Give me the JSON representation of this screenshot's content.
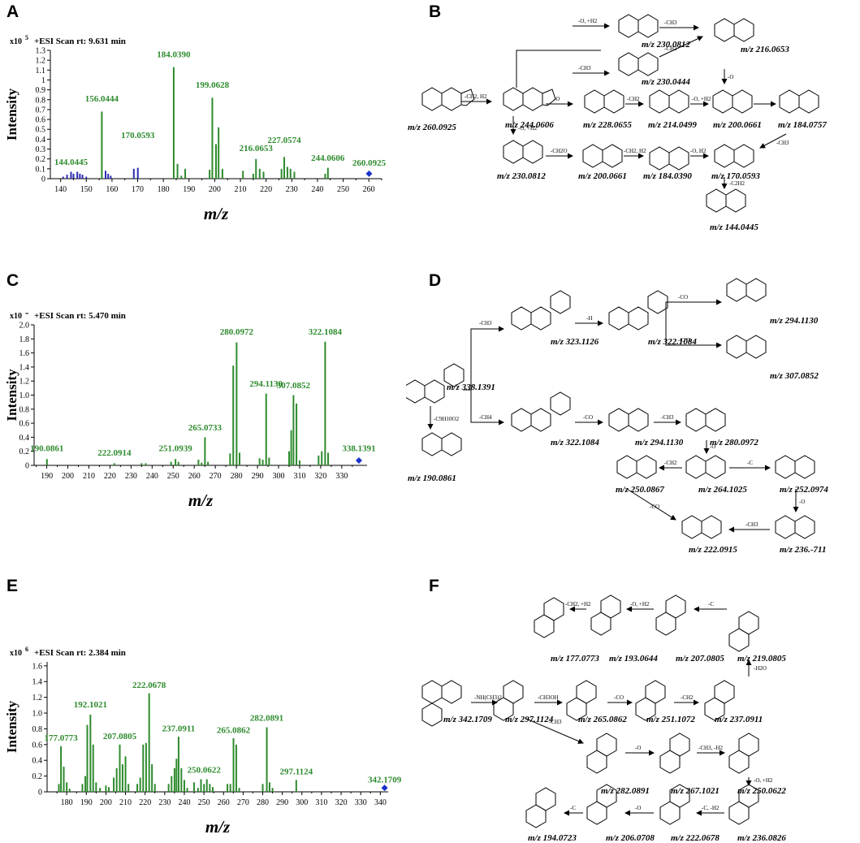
{
  "panel_labels": [
    "A",
    "B",
    "C",
    "D",
    "E",
    "F"
  ],
  "colors": {
    "peak": "#2e8b2e",
    "label": "#2e8b2e",
    "minor": "#2b2bb0",
    "precursor": "#1a33cc",
    "axis": "#000000"
  },
  "chart_data": [
    {
      "type": "bar",
      "panel": "A",
      "scale_label": "x10",
      "scale_exp": "5",
      "title": "+ESI Scan rt: 9.631 min",
      "xlabel": "m/z",
      "ylabel": "Intensity",
      "xlim": [
        136,
        265
      ],
      "ylim": [
        0,
        1.3
      ],
      "xticks": [
        140,
        150,
        160,
        170,
        180,
        190,
        200,
        210,
        220,
        230,
        240,
        250,
        260
      ],
      "yticks": [
        0,
        0.1,
        0.2,
        0.3,
        0.4,
        0.5,
        0.6,
        0.7,
        0.8,
        0.9,
        1.0,
        1.1,
        1.2,
        1.3
      ],
      "ytick_labels": [
        "0",
        "0.1",
        "0.2",
        "0.3",
        "0.4",
        "0.5",
        "0.6",
        "0.7",
        "0.8",
        "0.9",
        "1",
        "1.1",
        "1.2",
        "1.3"
      ],
      "peaks": [
        [
          141,
          0.02
        ],
        [
          142.5,
          0.04
        ],
        [
          144.0445,
          0.07
        ],
        [
          145,
          0.05
        ],
        [
          146.5,
          0.07
        ],
        [
          147.5,
          0.05
        ],
        [
          148.5,
          0.04
        ],
        [
          150,
          0.02
        ],
        [
          156.0444,
          0.68
        ],
        [
          157.5,
          0.08
        ],
        [
          158.5,
          0.05
        ],
        [
          159.5,
          0.03
        ],
        [
          168.5,
          0.1
        ],
        [
          170.0593,
          0.11
        ],
        [
          184.039,
          1.13
        ],
        [
          185.5,
          0.15
        ],
        [
          187,
          0.03
        ],
        [
          188.5,
          0.1
        ],
        [
          198,
          0.09
        ],
        [
          199.0628,
          0.82
        ],
        [
          200.5,
          0.35
        ],
        [
          201.5,
          0.52
        ],
        [
          203,
          0.1
        ],
        [
          211,
          0.08
        ],
        [
          215,
          0.05
        ],
        [
          216.0653,
          0.2
        ],
        [
          217.5,
          0.1
        ],
        [
          219,
          0.07
        ],
        [
          226,
          0.1
        ],
        [
          227.0574,
          0.22
        ],
        [
          228.3,
          0.12
        ],
        [
          229.5,
          0.1
        ],
        [
          231,
          0.07
        ],
        [
          243,
          0.05
        ],
        [
          244.0606,
          0.11
        ]
      ],
      "minor_peaks": [
        [
          141,
          0.02
        ],
        [
          142.5,
          0.04
        ],
        [
          144.0445,
          0.07
        ],
        [
          145,
          0.05
        ],
        [
          146.5,
          0.07
        ],
        [
          147.5,
          0.05
        ],
        [
          148.5,
          0.04
        ],
        [
          150,
          0.02
        ],
        [
          157.5,
          0.08
        ],
        [
          158.5,
          0.05
        ],
        [
          159.5,
          0.03
        ],
        [
          168.5,
          0.1
        ],
        [
          170.0593,
          0.11
        ]
      ],
      "precursor": [
        260.0925,
        0.05
      ],
      "labels": [
        {
          "text": "144.0445",
          "x": 144.0445,
          "y": 0.14
        },
        {
          "text": "156.0444",
          "x": 156.0444,
          "y": 0.78
        },
        {
          "text": "170.0593",
          "x": 170.0593,
          "y": 0.41
        },
        {
          "text": "184.0390",
          "x": 184.039,
          "y": 1.23
        },
        {
          "text": "199.0628",
          "x": 199.0628,
          "y": 0.92
        },
        {
          "text": "216.0653",
          "x": 216.0653,
          "y": 0.28
        },
        {
          "text": "227.0574",
          "x": 227.0574,
          "y": 0.36
        },
        {
          "text": "244.0606",
          "x": 244.0606,
          "y": 0.18
        },
        {
          "text": "260.0925",
          "x": 260.0925,
          "y": 0.13
        }
      ]
    },
    {
      "type": "bar",
      "panel": "C",
      "scale_label": "x10",
      "scale_exp": "6",
      "title": "+ESI Scan rt: 5.470 min",
      "xlabel": "m/z",
      "ylabel": "Intensity",
      "xlim": [
        184,
        342
      ],
      "ylim": [
        0,
        2.0
      ],
      "xticks": [
        190,
        200,
        210,
        220,
        230,
        240,
        250,
        260,
        270,
        280,
        290,
        300,
        310,
        320,
        330
      ],
      "yticks": [
        0,
        0.2,
        0.4,
        0.6,
        0.8,
        1.0,
        1.2,
        1.4,
        1.6,
        1.8,
        2.0
      ],
      "ytick_labels": [
        "0",
        "0.2",
        "0.4",
        "0.6",
        "0.8",
        "1.0",
        "1.2",
        "1.4",
        "1.6",
        "1.8",
        "2.0"
      ],
      "peaks": [
        [
          190.0861,
          0.09
        ],
        [
          222.0914,
          0.03
        ],
        [
          235,
          0.03
        ],
        [
          237,
          0.03
        ],
        [
          249,
          0.05
        ],
        [
          251.0939,
          0.09
        ],
        [
          252.5,
          0.05
        ],
        [
          262,
          0.08
        ],
        [
          263.5,
          0.04
        ],
        [
          265.0733,
          0.4
        ],
        [
          266.5,
          0.05
        ],
        [
          277,
          0.17
        ],
        [
          278.5,
          1.42
        ],
        [
          280.0972,
          1.75
        ],
        [
          281.5,
          0.18
        ],
        [
          291,
          0.1
        ],
        [
          292.5,
          0.08
        ],
        [
          294.113,
          1.02
        ],
        [
          295.5,
          0.11
        ],
        [
          305,
          0.2
        ],
        [
          306,
          0.5
        ],
        [
          307.0852,
          1.0
        ],
        [
          308.5,
          0.88
        ],
        [
          310,
          0.07
        ],
        [
          319,
          0.14
        ],
        [
          320.5,
          0.2
        ],
        [
          322.1084,
          1.76
        ],
        [
          323.5,
          0.18
        ]
      ],
      "minor_peaks": [],
      "precursor": [
        338.1391,
        0.07
      ],
      "labels": [
        {
          "text": "190.0861",
          "x": 190.0861,
          "y": 0.2
        },
        {
          "text": "222.0914",
          "x": 222.0914,
          "y": 0.14
        },
        {
          "text": "251.0939",
          "x": 251.0939,
          "y": 0.2
        },
        {
          "text": "265.0733",
          "x": 265.0733,
          "y": 0.5
        },
        {
          "text": "280.0972",
          "x": 280.0972,
          "y": 1.86
        },
        {
          "text": "294.1130",
          "x": 294.113,
          "y": 1.12
        },
        {
          "text": "307.0852",
          "x": 307.0852,
          "y": 1.1
        },
        {
          "text": "322.1084",
          "x": 322.1084,
          "y": 1.86
        },
        {
          "text": "338.1391",
          "x": 338.1391,
          "y": 0.2
        }
      ]
    },
    {
      "type": "bar",
      "panel": "E",
      "scale_label": "x10",
      "scale_exp": "6",
      "title": "+ESI Scan rt: 2.384 min",
      "xlabel": "m/z",
      "ylabel": "Intensity",
      "xlim": [
        170,
        344
      ],
      "ylim": [
        0,
        1.65
      ],
      "xticks": [
        180,
        190,
        200,
        210,
        220,
        230,
        240,
        250,
        260,
        270,
        280,
        290,
        300,
        310,
        320,
        330,
        340
      ],
      "yticks": [
        0,
        0.2,
        0.4,
        0.6,
        0.8,
        1.0,
        1.2,
        1.4,
        1.6
      ],
      "ytick_labels": [
        "0",
        "0.2",
        "0.4",
        "0.6",
        "0.8",
        "1.0",
        "1.2",
        "1.4",
        "1.6"
      ],
      "peaks": [
        [
          176,
          0.1
        ],
        [
          177.0773,
          0.58
        ],
        [
          178.5,
          0.32
        ],
        [
          180,
          0.12
        ],
        [
          181.5,
          0.04
        ],
        [
          188,
          0.1
        ],
        [
          189.5,
          0.2
        ],
        [
          190.5,
          0.85
        ],
        [
          192.1021,
          0.98
        ],
        [
          193.5,
          0.6
        ],
        [
          195,
          0.12
        ],
        [
          197,
          0.05
        ],
        [
          200,
          0.08
        ],
        [
          201.5,
          0.06
        ],
        [
          204,
          0.18
        ],
        [
          205.5,
          0.3
        ],
        [
          207.0805,
          0.6
        ],
        [
          208.5,
          0.35
        ],
        [
          210,
          0.45
        ],
        [
          211.5,
          0.1
        ],
        [
          216,
          0.1
        ],
        [
          217.5,
          0.18
        ],
        [
          219,
          0.6
        ],
        [
          220.5,
          0.62
        ],
        [
          222.0678,
          1.25
        ],
        [
          223.5,
          0.35
        ],
        [
          225,
          0.1
        ],
        [
          232,
          0.1
        ],
        [
          233.5,
          0.2
        ],
        [
          235,
          0.3
        ],
        [
          236,
          0.42
        ],
        [
          237.0911,
          0.7
        ],
        [
          238.5,
          0.3
        ],
        [
          240,
          0.15
        ],
        [
          241.5,
          0.05
        ],
        [
          245,
          0.12
        ],
        [
          247,
          0.05
        ],
        [
          248.5,
          0.16
        ],
        [
          250.0622,
          0.1
        ],
        [
          251.5,
          0.16
        ],
        [
          253,
          0.1
        ],
        [
          254.5,
          0.06
        ],
        [
          262,
          0.1
        ],
        [
          263.5,
          0.1
        ],
        [
          265.0862,
          0.68
        ],
        [
          266.5,
          0.6
        ],
        [
          268,
          0.05
        ],
        [
          280,
          0.1
        ],
        [
          282.0891,
          0.82
        ],
        [
          283.5,
          0.12
        ],
        [
          285,
          0.05
        ],
        [
          297.1124,
          0.15
        ]
      ],
      "minor_peaks": [],
      "precursor": [
        342.1709,
        0.05
      ],
      "labels": [
        {
          "text": "177.0773",
          "x": 177.0773,
          "y": 0.65
        },
        {
          "text": "192.1021",
          "x": 192.1021,
          "y": 1.07
        },
        {
          "text": "207.0805",
          "x": 207.0805,
          "y": 0.67
        },
        {
          "text": "222.0678",
          "x": 222.0678,
          "y": 1.32
        },
        {
          "text": "237.0911",
          "x": 237.0911,
          "y": 0.77
        },
        {
          "text": "250.0622",
          "x": 250.0622,
          "y": 0.24
        },
        {
          "text": "265.0862",
          "x": 265.0862,
          "y": 0.75
        },
        {
          "text": "282.0891",
          "x": 282.0891,
          "y": 0.9
        },
        {
          "text": "297.1124",
          "x": 297.1124,
          "y": 0.22
        },
        {
          "text": "342.1709",
          "x": 342.1709,
          "y": 0.12
        }
      ]
    }
  ],
  "schemes": {
    "B": {
      "nodes": [
        "m/z 260.0925",
        "m/z 244.0606",
        "m/z 228.0655",
        "m/z 214.0499",
        "m/z 200.0661",
        "m/z 184.0757",
        "m/z 230.0812",
        "m/z 230.0444",
        "m/z 216.0653",
        "m/z 230.0812",
        "m/z 200.0661",
        "m/z 184.0390",
        "m/z 170.0593",
        "m/z 144.0445"
      ],
      "losses": [
        "-CH2, H2",
        "-O",
        "-CH2",
        "-O, +H2",
        "-O, +H2",
        "-CH3",
        "-CH3",
        "-CH2",
        "-O",
        "-O, +H2",
        "-CH2O",
        "-CH2, H2",
        "-O, H2",
        "-CH3",
        "-C2H2"
      ]
    },
    "D": {
      "nodes": [
        "m/z 338.1391",
        "m/z 323.1126",
        "m/z 322.1084",
        "m/z 294.1130",
        "m/z 307.0852",
        "m/z 322.1084",
        "m/z 294.1130",
        "m/z 280.0972",
        "m/z 190.0861",
        "m/z 264.1025",
        "m/z 250.0867",
        "m/z 252.0974",
        "m/z 236.-711",
        "m/z 222.0915"
      ],
      "losses": [
        "-CH3",
        "-H",
        "-CO",
        "-CH3",
        "-CH4",
        "-CO",
        "-CH3",
        "-C9H10O2",
        "-O",
        "-CH2",
        "-C",
        "-O",
        "-CO",
        "-CH3"
      ]
    },
    "F": {
      "nodes": [
        "m/z 342.1709",
        "m/z 297.1124",
        "m/z 265.0862",
        "m/z 251.1072",
        "m/z 237.0911",
        "m/z 219.0805",
        "m/z 207.0805",
        "m/z 193.0644",
        "m/z 177.0773",
        "m/z 282.0891",
        "m/z 267.1021",
        "m/z 250.0622",
        "m/z 236.0826",
        "m/z 222.0678",
        "m/z 206.0708",
        "m/z 194.0723"
      ],
      "losses": [
        "-NH(CH3)2",
        "-CH3OH",
        "-CO",
        "-CH2",
        "-H2O",
        "-C",
        "-O, +H2",
        "-CH2, +H2",
        "-CH3",
        "-O",
        "-CH3, -H2",
        "-O, +H2",
        "-C, -H2",
        "-O",
        "-C"
      ]
    }
  }
}
